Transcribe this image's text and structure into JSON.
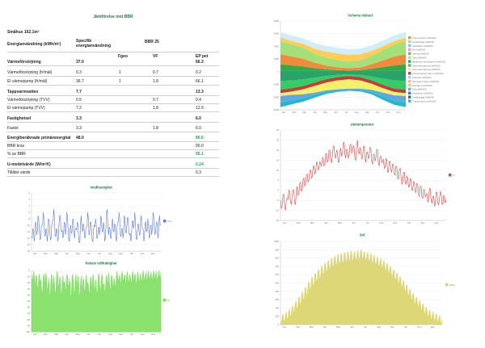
{
  "report": {
    "title": "Jämförelse mot BBR",
    "area_label": "Småhus 162.1m²",
    "col_energy": "Energianvändning (kWh/m²)",
    "col_specific": "Specifik energianvändning",
    "col_bbr": "BBR 25",
    "col_fgeo": "Fgeo",
    "col_vf": "VF",
    "col_ep": "EP pet",
    "rows": [
      {
        "label": "Värmeförsörjning",
        "spec": "37.0",
        "fgeo": "",
        "vf": "",
        "ep": "66.3",
        "bold": true
      },
      {
        "label": "Värmeförsörjning (fr/mäl)",
        "spec": "0.3",
        "fgeo": "1",
        "vf": "0.7",
        "ep": "0.2",
        "bold": false
      },
      {
        "label": "El värmepump (fr/mäl)",
        "spec": "36.7",
        "fgeo": "1",
        "vf": "1.8",
        "ep": "66.1",
        "bold": false
      },
      {
        "label": "Tappvarmvatten",
        "spec": "7.7",
        "fgeo": "",
        "vf": "",
        "ep": "13.3",
        "bold": true
      },
      {
        "label": "Värmeförsörjning (TVV)",
        "spec": "0.5",
        "fgeo": "",
        "vf": "0.7",
        "ep": "0.4",
        "bold": false
      },
      {
        "label": "El värmepump (TVV)",
        "spec": "7.2",
        "fgeo": "",
        "vf": "1.8",
        "ep": "12.9",
        "bold": false
      },
      {
        "label": "Fastighetsel",
        "spec": "3.3",
        "fgeo": "",
        "vf": "",
        "ep": "6.0",
        "bold": true
      },
      {
        "label": "Fastel",
        "spec": "3.3",
        "fgeo": "",
        "vf": "1.8",
        "ep": "6.0",
        "bold": false
      },
      {
        "label": "Energiberäknade primärenergital",
        "spec": "48.0",
        "fgeo": "",
        "vf": "",
        "ep": "85.6",
        "bold": true,
        "green": true
      },
      {
        "label": "BBR krav",
        "spec": "",
        "fgeo": "",
        "vf": "",
        "ep": "90.0",
        "bold": false
      },
      {
        "label": "% av BBR",
        "spec": "",
        "fgeo": "",
        "vf": "",
        "ep": "95.1",
        "bold": false,
        "green": true
      },
      {
        "label": "U-medelvärde (W/m²K)",
        "spec": "",
        "fgeo": "",
        "vf": "",
        "ep": "0.24",
        "bold": true,
        "green": true
      },
      {
        "label": "Tillåtet värde",
        "spec": "",
        "fgeo": "",
        "vf": "",
        "ep": "0.3",
        "bold": false
      }
    ]
  },
  "chart_data": [
    {
      "type": "line",
      "title": "Vindhastighet",
      "legend": "m/s",
      "x_ticks": [
        "Jan",
        "Feb",
        "Mar",
        "Apr",
        "May",
        "Jun",
        "Jul",
        "Aug",
        "Sep",
        "Oct",
        "Nov",
        "Dec"
      ],
      "y_ticks": [
        "0",
        "2",
        "4",
        "6",
        "8",
        "10",
        "12",
        "14",
        "16",
        "18"
      ],
      "ylim": [
        0,
        18
      ],
      "color": "#5b7bd6",
      "values": [
        4,
        7,
        3,
        9,
        5,
        11,
        6,
        4,
        8,
        12,
        5,
        7,
        3,
        10,
        6,
        4,
        9,
        13,
        5,
        7,
        3,
        8,
        11,
        6,
        4,
        9,
        5,
        12,
        7,
        3,
        8,
        6,
        10,
        4,
        7,
        9,
        5,
        3,
        11,
        6,
        8,
        4,
        7,
        12,
        5,
        9,
        6,
        3,
        8,
        10,
        4,
        7,
        5,
        11,
        6,
        9,
        3,
        8,
        13,
        5,
        7,
        4,
        10,
        6,
        8,
        3,
        9,
        12,
        5,
        7,
        4,
        11,
        6,
        8,
        10,
        5,
        3,
        9,
        7,
        12,
        4,
        6,
        8,
        5,
        11,
        7,
        3,
        9,
        6,
        10,
        4,
        8,
        5,
        12,
        7,
        6,
        9,
        4,
        11,
        8
      ],
      "title_color": "#1b7a3a"
    },
    {
      "type": "line",
      "title": "Relativ luftfuktighet",
      "legend": "%",
      "x_ticks": [
        "Jan",
        "Feb",
        "Mar",
        "Apr",
        "May",
        "Jun",
        "Jul",
        "Aug",
        "Sep",
        "Oct",
        "Nov",
        "Dec"
      ],
      "y_ticks": [
        "0",
        "10",
        "20",
        "30",
        "40",
        "50",
        "60",
        "70",
        "80",
        "90",
        "100"
      ],
      "ylim": [
        0,
        100
      ],
      "color": "#77dd55",
      "values": [
        92,
        88,
        95,
        80,
        90,
        72,
        94,
        85,
        60,
        91,
        83,
        96,
        70,
        88,
        55,
        93,
        78,
        90,
        62,
        86,
        95,
        74,
        89,
        58,
        92,
        81,
        67,
        94,
        76,
        88,
        52,
        90,
        84,
        63,
        95,
        79,
        87,
        57,
        91,
        73,
        85,
        66,
        93,
        80,
        61,
        88,
        75,
        94,
        69,
        86,
        59,
        92,
        83,
        71,
        95,
        77,
        64,
        89,
        82,
        96,
        68,
        91,
        78,
        85,
        73,
        94,
        88,
        90,
        81,
        95,
        87,
        92,
        79,
        96,
        85,
        90,
        83,
        94,
        88,
        93,
        80,
        95,
        86,
        91,
        84,
        96,
        89,
        92,
        87,
        95,
        90,
        93,
        88,
        96,
        91,
        94,
        89,
        95,
        92,
        97
      ],
      "title_color": "#1b7a3a"
    },
    {
      "type": "area",
      "title": "Schema månad",
      "x_ticks": [
        "Jan",
        "Feb",
        "Mar",
        "Apr",
        "May",
        "Jun",
        "Jul",
        "Aug",
        "Sep",
        "Oct",
        "Nov",
        "Dec"
      ],
      "y_ticks": [
        "4000",
        "3000",
        "2000",
        "1000",
        "0",
        "-1000",
        "-2000",
        "-3000"
      ],
      "ylim": [
        -3500,
        4500
      ],
      "legend": [
        "Transmission (kWh/D)",
        "Luftläckage (kWh/D)",
        "Ventilation (kWh/D)",
        "Sol (kWh/D)",
        "Interna (kWh/D)",
        "Kyla (kWh/D)",
        "Beräknat värmebehov (kWh/D)",
        "Värmeförsörjning (kWh/D)",
        "Värmeförsörjning (kWh/D)",
        "Ackumulerad värme (kWh/D)",
        "Förluster (kWh/D)",
        "Tappvarmvatten (kWh/D)",
        "Solvärme (kWh/D)",
        "Kyla (kWh/D)",
        "Ventilation (kWh/D)",
        "Luftläckage (kWh/D)",
        "Transmission (kWh/D)"
      ],
      "legend_colors": [
        "#f08a3c",
        "#a4e07a",
        "#7dc5f0",
        "#e8a0c8",
        "#6db86a",
        "#c8d86a",
        "#2aa36a",
        "#33cc66",
        "#f5f06a",
        "#c43c3c",
        "#9bd4f0",
        "#f0c070",
        "#ffcc55",
        "#6ab0d8",
        "#3a7ac0",
        "#2d6aa3",
        "#20b8d0"
      ],
      "pos_bands": [
        [
          600,
          500,
          400,
          250,
          150,
          80,
          50,
          80,
          200,
          350,
          500,
          600
        ],
        [
          900,
          800,
          700,
          500,
          350,
          250,
          200,
          230,
          400,
          600,
          800,
          900
        ],
        [
          1200,
          1100,
          1000,
          800,
          700,
          650,
          600,
          650,
          750,
          950,
          1100,
          1200
        ],
        [
          300,
          300,
          350,
          450,
          550,
          600,
          600,
          550,
          450,
          350,
          300,
          300
        ],
        [
          500,
          500,
          500,
          500,
          500,
          500,
          500,
          500,
          500,
          500,
          500,
          500
        ]
      ],
      "neg_bands": [
        [
          900,
          850,
          750,
          600,
          450,
          350,
          300,
          350,
          500,
          700,
          850,
          900
        ],
        [
          800,
          700,
          600,
          450,
          300,
          200,
          150,
          200,
          350,
          550,
          750,
          800
        ],
        [
          300,
          300,
          300,
          300,
          300,
          300,
          300,
          300,
          300,
          300,
          300,
          300
        ],
        [
          250,
          300,
          450,
          600,
          700,
          800,
          850,
          750,
          550,
          400,
          300,
          250
        ],
        [
          600,
          500,
          350,
          200,
          120,
          80,
          60,
          90,
          200,
          350,
          500,
          600
        ],
        [
          400,
          350,
          300,
          250,
          200,
          150,
          120,
          150,
          200,
          300,
          350,
          400
        ]
      ],
      "pos_colors": [
        "#33aa44",
        "#f08a3c",
        "#a4e07a",
        "#ffcc55",
        "#cfeef9"
      ],
      "neg_colors": [
        "#2aa36a",
        "#33cc66",
        "#c43c3c",
        "#f5f06a",
        "#5fa8e0",
        "#20b8d0"
      ],
      "title_color": "#1b7a3a"
    },
    {
      "type": "line",
      "title": "Utetemperatur",
      "legend": "°C",
      "x_ticks": [
        "Jan",
        "Feb",
        "Mar",
        "Apr",
        "May",
        "Jun",
        "Jul",
        "Aug",
        "Sep",
        "Oct",
        "Nov",
        "Dec"
      ],
      "y_ticks": [
        "30",
        "25",
        "20",
        "15",
        "10",
        "5",
        "0",
        "-5",
        "-10",
        "-15"
      ],
      "ylim": [
        -15,
        30
      ],
      "color": "#d94444",
      "values": [
        -5,
        -8,
        -2,
        -10,
        -4,
        0,
        -6,
        -3,
        -1,
        -7,
        2,
        -2,
        4,
        0,
        6,
        3,
        8,
        5,
        10,
        7,
        12,
        9,
        14,
        11,
        13,
        16,
        12,
        18,
        14,
        20,
        15,
        17,
        22,
        16,
        19,
        14,
        21,
        18,
        24,
        16,
        20,
        17,
        23,
        19,
        21,
        15,
        25,
        18,
        20,
        16,
        22,
        14,
        19,
        17,
        21,
        13,
        18,
        16,
        20,
        12,
        17,
        15,
        11,
        16,
        9,
        14,
        10,
        13,
        8,
        12,
        6,
        10,
        7,
        4,
        9,
        3,
        6,
        2,
        5,
        0,
        4,
        -1,
        3,
        -3,
        2,
        -4,
        0,
        -2,
        -6,
        1,
        -5,
        -3,
        -8,
        -1,
        -6,
        -4,
        -2,
        -7,
        -3,
        -5
      ],
      "title_color": "#1b7a3a"
    },
    {
      "type": "area",
      "title": "Sol",
      "legend": "W/m2",
      "x_ticks": [
        "Jan",
        "Feb",
        "Mar",
        "Apr",
        "May",
        "Jun",
        "Jul",
        "Aug",
        "Sep",
        "Oct",
        "Nov",
        "Dec"
      ],
      "y_ticks": [
        "1000",
        "900",
        "800",
        "700",
        "600",
        "500",
        "400",
        "300",
        "200",
        "100",
        "0"
      ],
      "ylim": [
        0,
        1000
      ],
      "color": "#d8d060",
      "values": [
        40,
        90,
        60,
        120,
        80,
        160,
        110,
        200,
        150,
        260,
        190,
        320,
        240,
        380,
        300,
        440,
        350,
        500,
        420,
        560,
        470,
        610,
        520,
        650,
        560,
        700,
        600,
        730,
        640,
        760,
        670,
        790,
        700,
        820,
        720,
        840,
        730,
        850,
        740,
        860,
        760,
        870,
        770,
        880,
        780,
        860,
        790,
        870,
        800,
        880,
        810,
        860,
        790,
        850,
        780,
        840,
        760,
        820,
        740,
        800,
        720,
        780,
        700,
        760,
        670,
        730,
        640,
        690,
        600,
        650,
        560,
        610,
        520,
        570,
        470,
        520,
        420,
        470,
        370,
        420,
        320,
        370,
        270,
        320,
        230,
        280,
        190,
        240,
        150,
        200,
        120,
        160,
        90,
        130,
        70,
        100,
        60,
        80,
        40,
        60
      ],
      "title_color": "#1b7a3a"
    }
  ]
}
